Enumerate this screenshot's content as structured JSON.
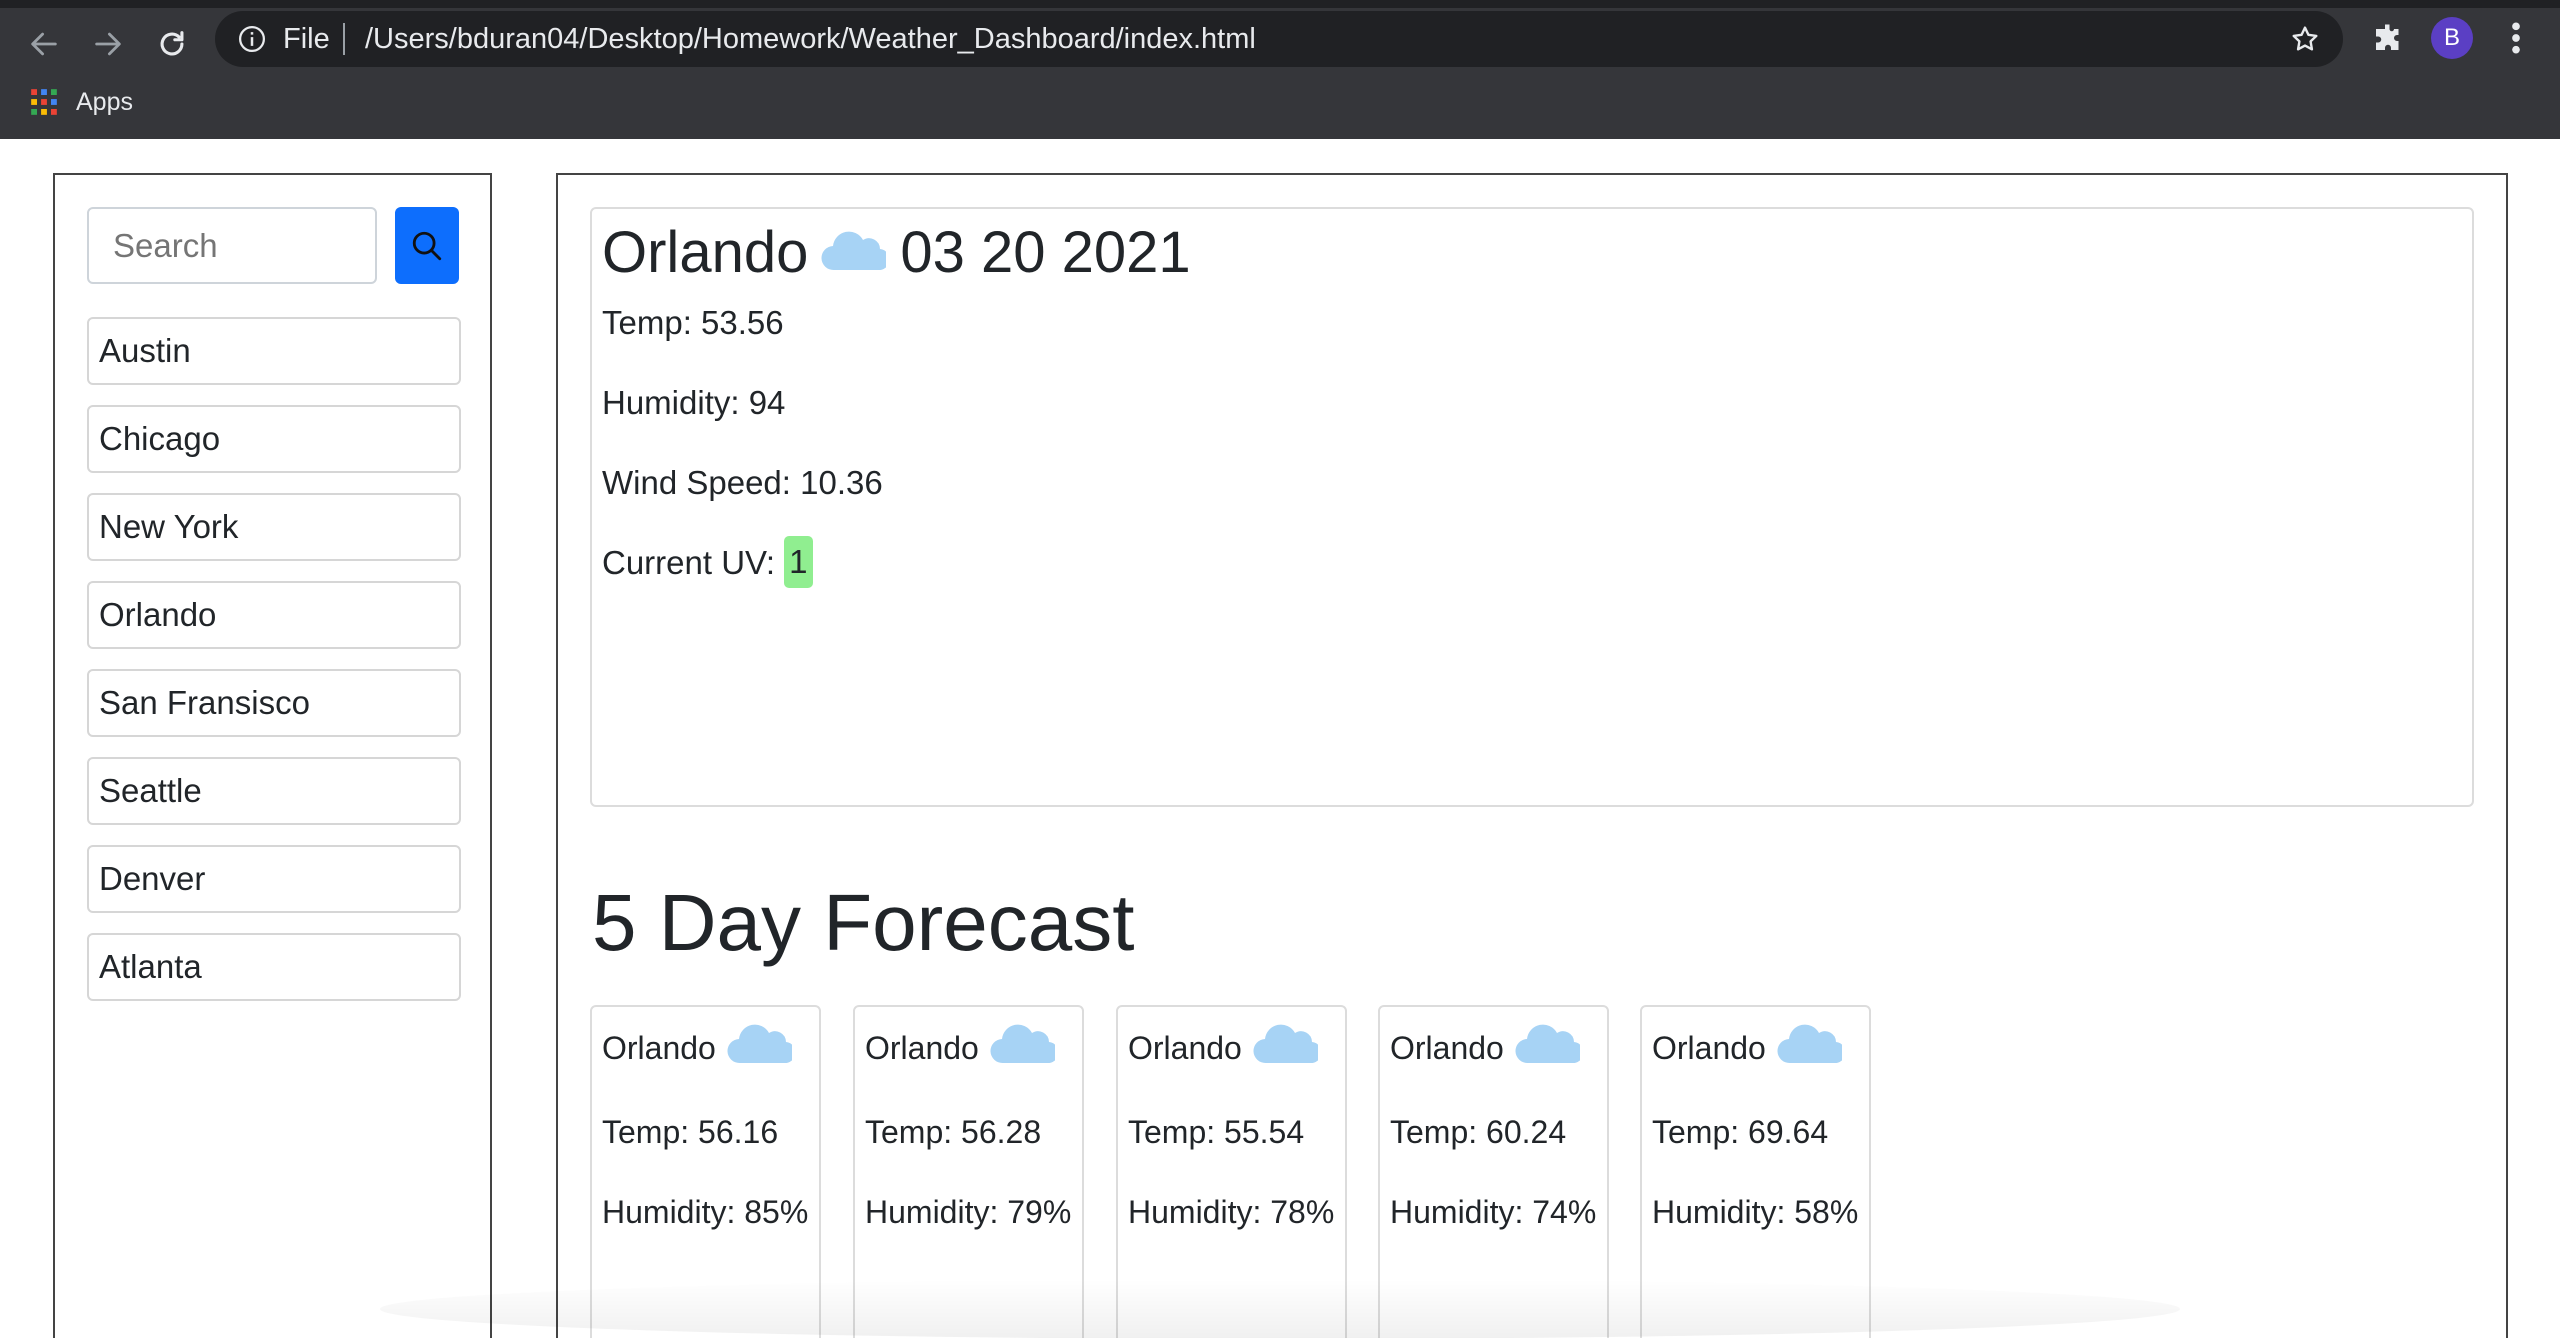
{
  "browser": {
    "file_label": "File",
    "url": "/Users/bduran04/Desktop/Homework/Weather_Dashboard/index.html",
    "profile_initial": "B",
    "bookmarks": [
      {
        "label": "Apps",
        "icon": "apps-grid-icon"
      }
    ]
  },
  "sidebar": {
    "search": {
      "placeholder": "Search",
      "button_icon": "search-icon",
      "button_color": "#0d6efd"
    },
    "cities": [
      "Austin",
      "Chicago",
      "New York",
      "Orlando",
      "San Fransisco",
      "Seattle",
      "Denver",
      "Atlanta"
    ]
  },
  "current": {
    "city": "Orlando",
    "icon": "cloud-icon",
    "date": "03 20 2021",
    "temp": "Temp: 53.56",
    "humidity": "Humidity: 94",
    "wind": "Wind Speed: 10.36",
    "uv_label": "Current UV: ",
    "uv_value": "1",
    "uv_color": "#90ee90"
  },
  "forecast": {
    "heading": "5 Day Forecast",
    "days": [
      {
        "city": "Orlando",
        "icon": "cloud-icon",
        "temp": "Temp: 56.16",
        "humidity": "Humidity: 85%"
      },
      {
        "city": "Orlando",
        "icon": "cloud-icon",
        "temp": "Temp: 56.28",
        "humidity": "Humidity: 79%"
      },
      {
        "city": "Orlando",
        "icon": "cloud-icon",
        "temp": "Temp: 55.54",
        "humidity": "Humidity: 78%"
      },
      {
        "city": "Orlando",
        "icon": "cloud-icon",
        "temp": "Temp: 60.24",
        "humidity": "Humidity: 74%"
      },
      {
        "city": "Orlando",
        "icon": "cloud-icon",
        "temp": "Temp: 69.64",
        "humidity": "Humidity: 58%"
      }
    ]
  }
}
